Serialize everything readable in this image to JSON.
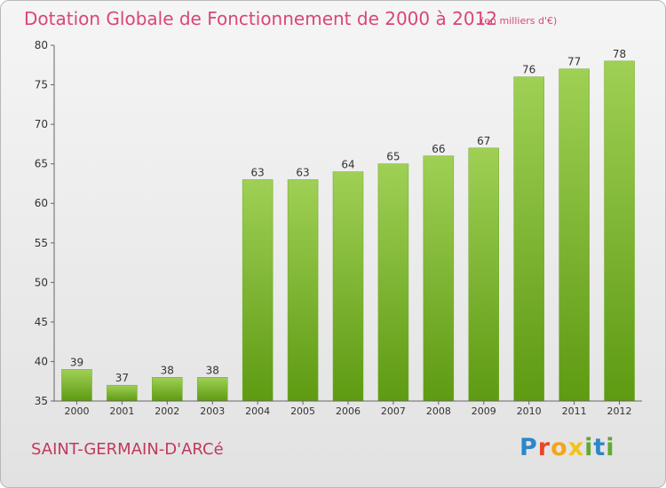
{
  "header": {
    "title": "Dotation Globale de Fonctionnement de 2000 à 2012",
    "unit": "(en milliers d'€)"
  },
  "footer": {
    "commune": "SAINT-GERMAIN-D'ARCé",
    "logo_letters": [
      "P",
      "r",
      "o",
      "x",
      "i",
      "t",
      "i"
    ]
  },
  "chart_data": {
    "type": "bar",
    "title": "Dotation Globale de Fonctionnement de 2000 à 2012",
    "subtitle": "(en milliers d'€)",
    "xlabel": "",
    "ylabel": "",
    "categories": [
      "2000",
      "2001",
      "2002",
      "2003",
      "2004",
      "2005",
      "2006",
      "2007",
      "2008",
      "2009",
      "2010",
      "2011",
      "2012"
    ],
    "values": [
      39,
      37,
      38,
      38,
      63,
      63,
      64,
      65,
      66,
      67,
      76,
      77,
      78
    ],
    "ylim": [
      35,
      80
    ],
    "yticks": [
      35,
      40,
      45,
      50,
      55,
      60,
      65,
      70,
      75,
      80
    ],
    "grid": false,
    "colors": {
      "bar_top": "#9fd055",
      "bar_bottom": "#5e9a12",
      "axis": "#666666",
      "text": "#333333"
    }
  }
}
